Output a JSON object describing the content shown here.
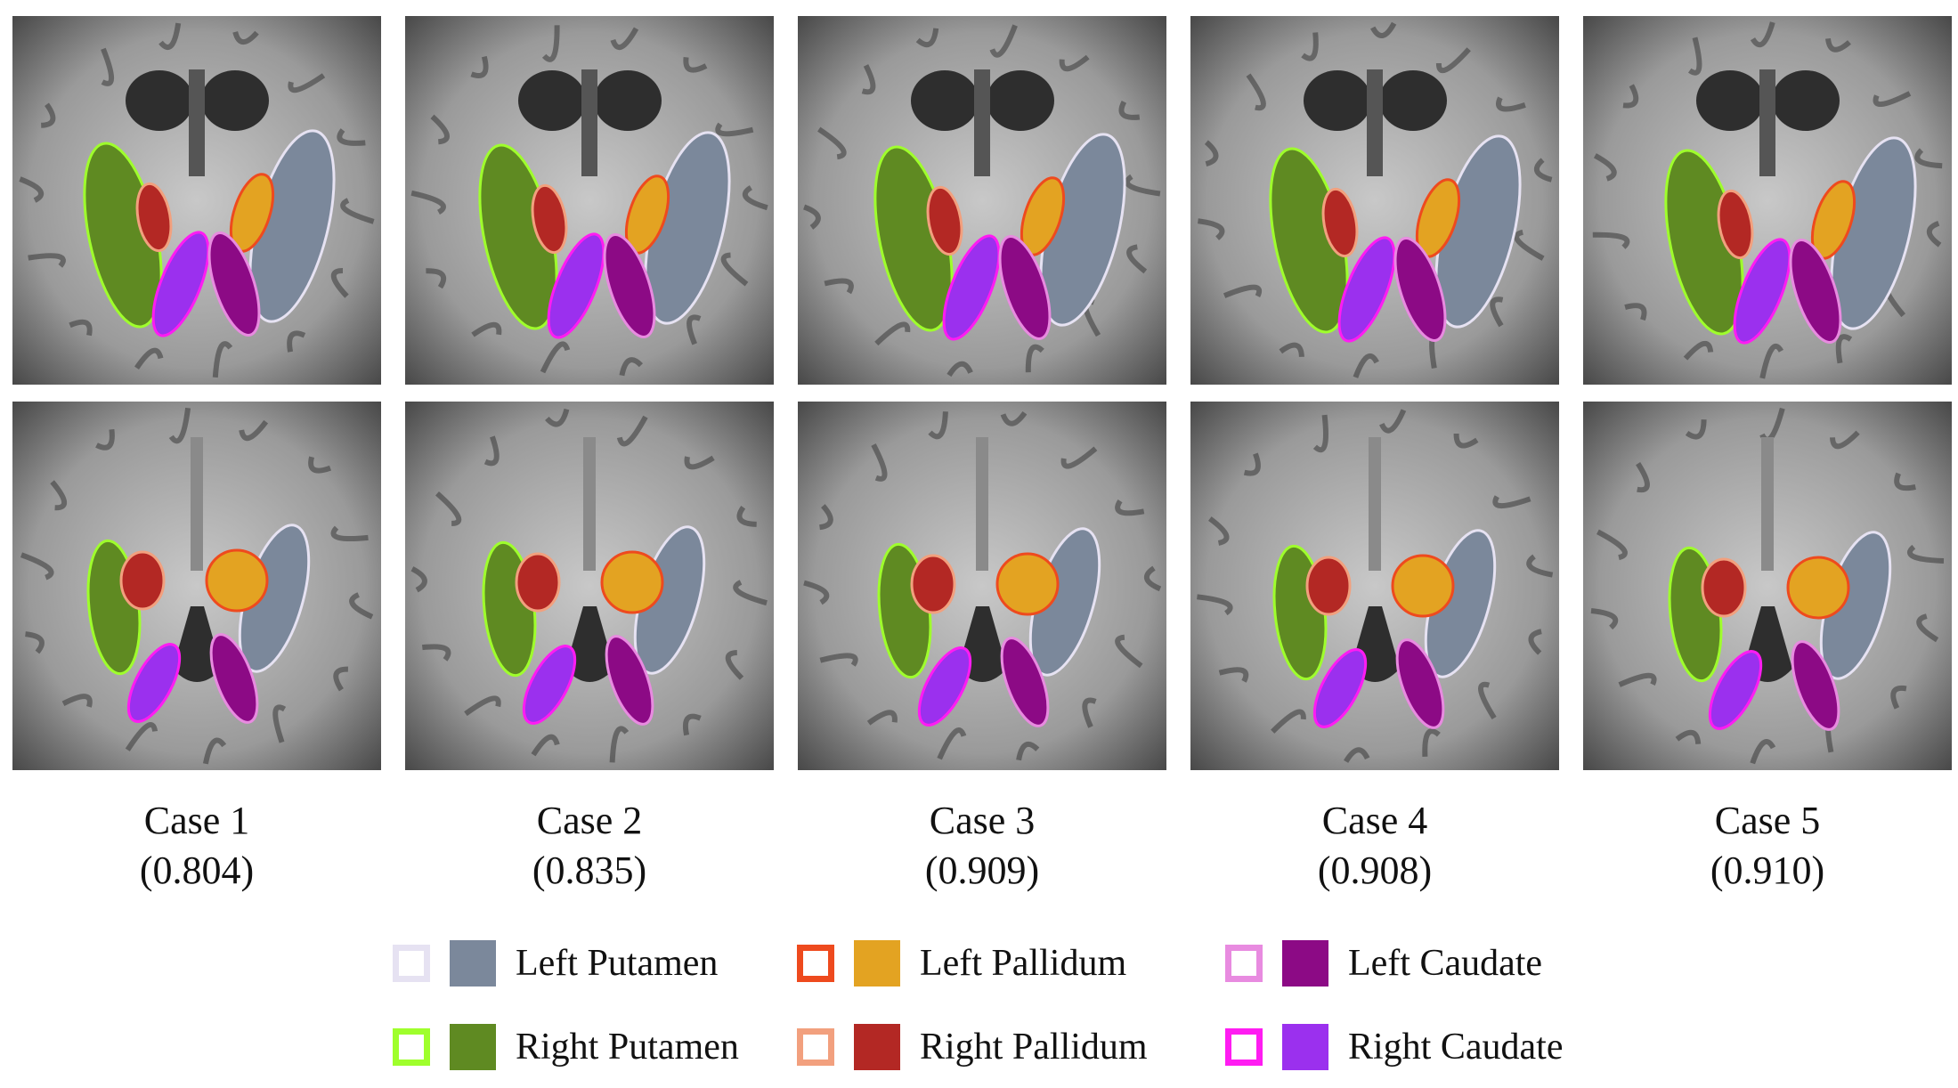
{
  "cases": [
    {
      "label": "Case 1",
      "score": "(0.804)"
    },
    {
      "label": "Case 2",
      "score": "(0.835)"
    },
    {
      "label": "Case 3",
      "score": "(0.909)"
    },
    {
      "label": "Case 4",
      "score": "(0.908)"
    },
    {
      "label": "Case 5",
      "score": "(0.910)"
    }
  ],
  "legend": [
    {
      "label": "Left Putamen",
      "outline": "#e6e2f2",
      "fill": "#7b889b"
    },
    {
      "label": "Left Pallidum",
      "outline": "#ee4a1e",
      "fill": "#e3a322"
    },
    {
      "label": "Left Caudate",
      "outline": "#e88be0",
      "fill": "#8c0a85"
    },
    {
      "label": "Right Putamen",
      "outline": "#9fff2c",
      "fill": "#5f8a22"
    },
    {
      "label": "Right Pallidum",
      "outline": "#f2a07e",
      "fill": "#b32824"
    },
    {
      "label": "Right Caudate",
      "outline": "#ff1cf2",
      "fill": "#9b30ee"
    }
  ],
  "image_rows": [
    "upper-slice",
    "lower-slice"
  ]
}
